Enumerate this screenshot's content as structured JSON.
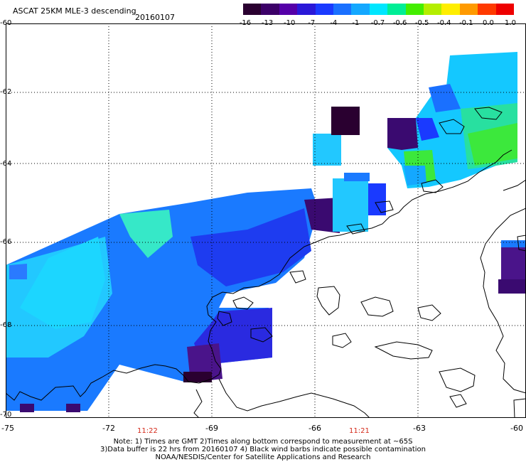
{
  "header": {
    "title": "ASCAT 25KM MLE-3 descending",
    "date": "20160107"
  },
  "colorbar": {
    "labels": [
      "-16",
      "-13",
      "-10",
      "-7",
      "-4",
      "-1",
      "-0.7",
      "-0.6",
      "-0.5",
      "-0.4",
      "-0.1",
      "0.0",
      "1.0"
    ],
    "colors": [
      "#2a0030",
      "#3c0068",
      "#5500a8",
      "#2a18d8",
      "#1a3aff",
      "#1a70ff",
      "#14a8ff",
      "#00e6ff",
      "#00ee96",
      "#44ee00",
      "#b4ee00",
      "#ffee00",
      "#ff9a00",
      "#ff3a00",
      "#ee0000"
    ]
  },
  "axes": {
    "latitudes": [
      "-60",
      "-62",
      "-64",
      "-66",
      "-68",
      "-70"
    ],
    "longitudes": [
      "-75",
      "-72",
      "-69",
      "-66",
      "-63",
      "-60"
    ]
  },
  "times": [
    "11:22",
    "11:21"
  ],
  "notes": [
    "Note: 1) Times are GMT 2)Times along bottom correspond to measurement at ~65S",
    "3)Data buffer is 22 hrs from 20160107 4) Black wind barbs indicate possible contamination",
    "NOAA/NESDIS/Center for Satellite Applications and Research"
  ]
}
